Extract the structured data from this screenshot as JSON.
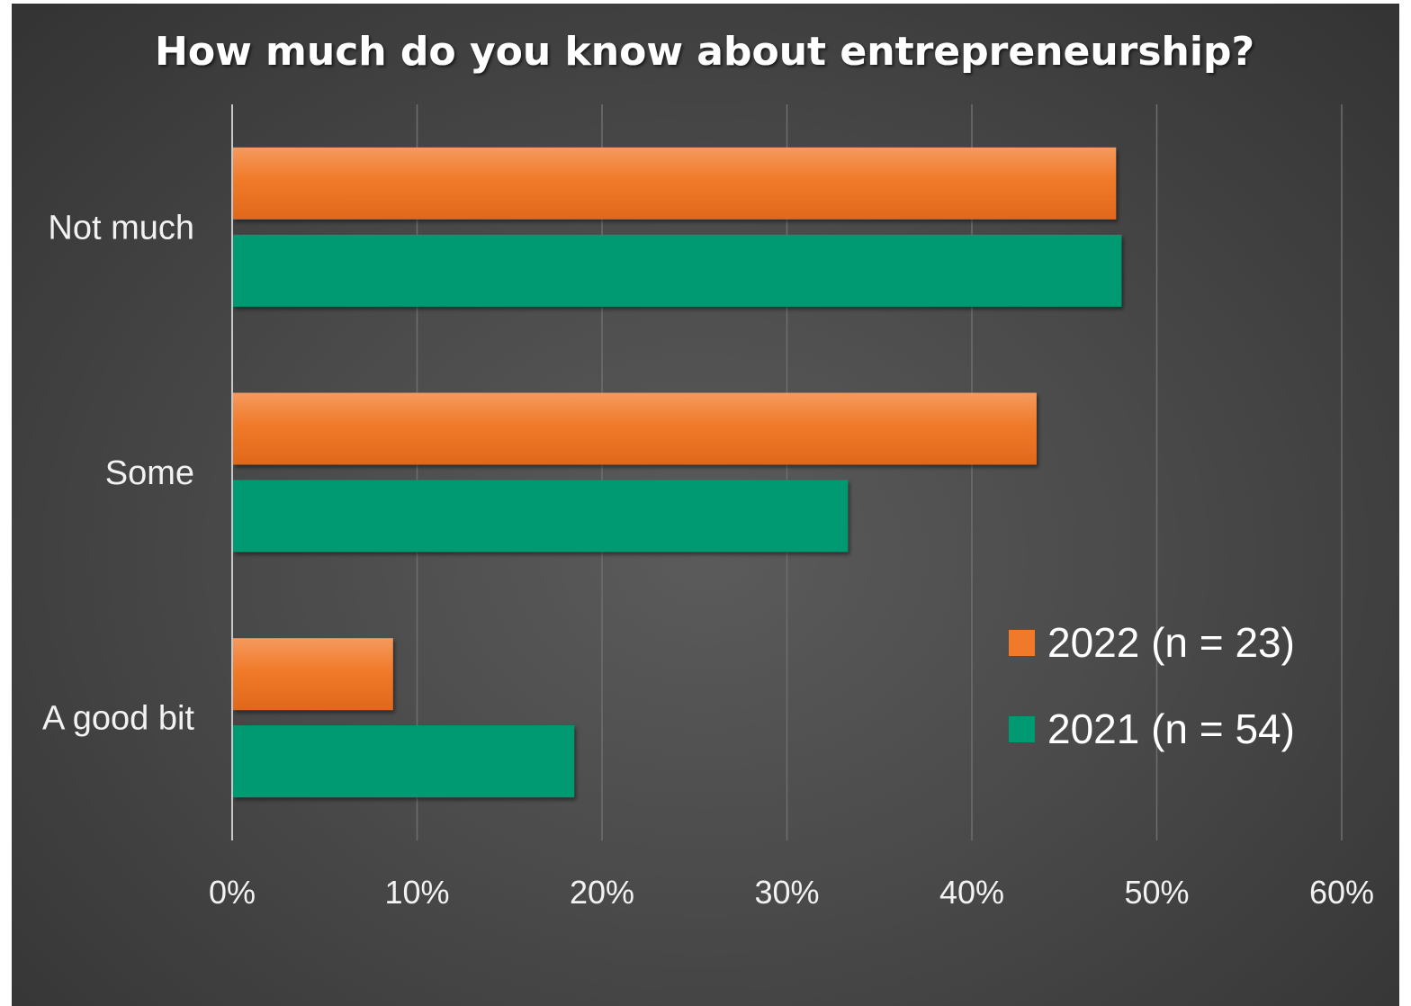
{
  "chart_data": {
    "type": "bar",
    "orientation": "horizontal",
    "title": "How much do you know about entrepreneurship?",
    "categories": [
      "Not much",
      "Some",
      "A good bit"
    ],
    "series": [
      {
        "name": "2022 (n = 23)",
        "color": "#f07a2a",
        "values": [
          47.8,
          43.5,
          8.7
        ]
      },
      {
        "name": "2021 (n = 54)",
        "color": "#009a72",
        "values": [
          48.1,
          33.3,
          18.5
        ]
      }
    ],
    "xlim": [
      0,
      60
    ],
    "xticks": [
      0,
      10,
      20,
      30,
      40,
      50,
      60
    ],
    "tick_labels": [
      "0%",
      "10%",
      "20%",
      "30%",
      "40%",
      "50%",
      "60%"
    ],
    "value_format": "percent",
    "grid": true,
    "legend_position": "bottom-right",
    "background": "#4a4a4a"
  }
}
